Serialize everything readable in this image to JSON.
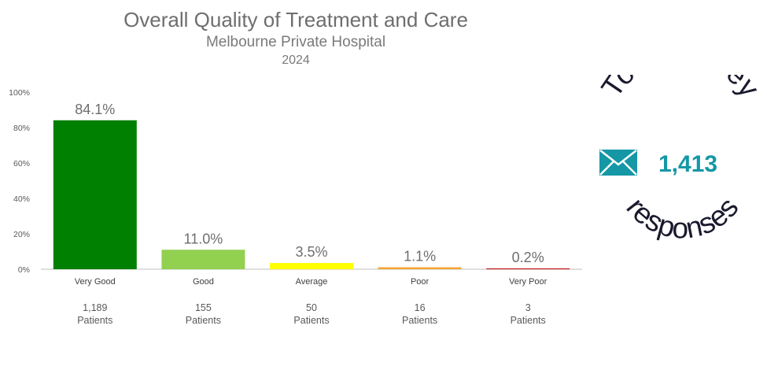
{
  "chart_data": {
    "type": "bar",
    "title": "Overall Quality of Treatment and Care",
    "subtitle": "Melbourne Private Hospital",
    "year": "2024",
    "categories": [
      "Very Good",
      "Good",
      "Average",
      "Poor",
      "Very Poor"
    ],
    "values": [
      84.1,
      11.0,
      3.5,
      1.1,
      0.2
    ],
    "value_labels": [
      "84.1%",
      "11.0%",
      "3.5%",
      "1.1%",
      "0.2%"
    ],
    "counts": [
      "1,189",
      "155",
      "50",
      "16",
      "3"
    ],
    "count_unit": "Patients",
    "colors": [
      "#008000",
      "#92d050",
      "#ffff00",
      "#f4a533",
      "#c00000"
    ],
    "ylim": [
      0,
      100
    ],
    "yticks": [
      "0%",
      "20%",
      "40%",
      "60%",
      "80%",
      "100%"
    ],
    "ytick_values": [
      0,
      20,
      40,
      60,
      80,
      100
    ],
    "grid": false
  },
  "badge": {
    "top_text": "Total survey",
    "bottom_text": "responses",
    "total": "1,413",
    "icon": "envelope-icon",
    "accent_color": "#1597a6"
  }
}
